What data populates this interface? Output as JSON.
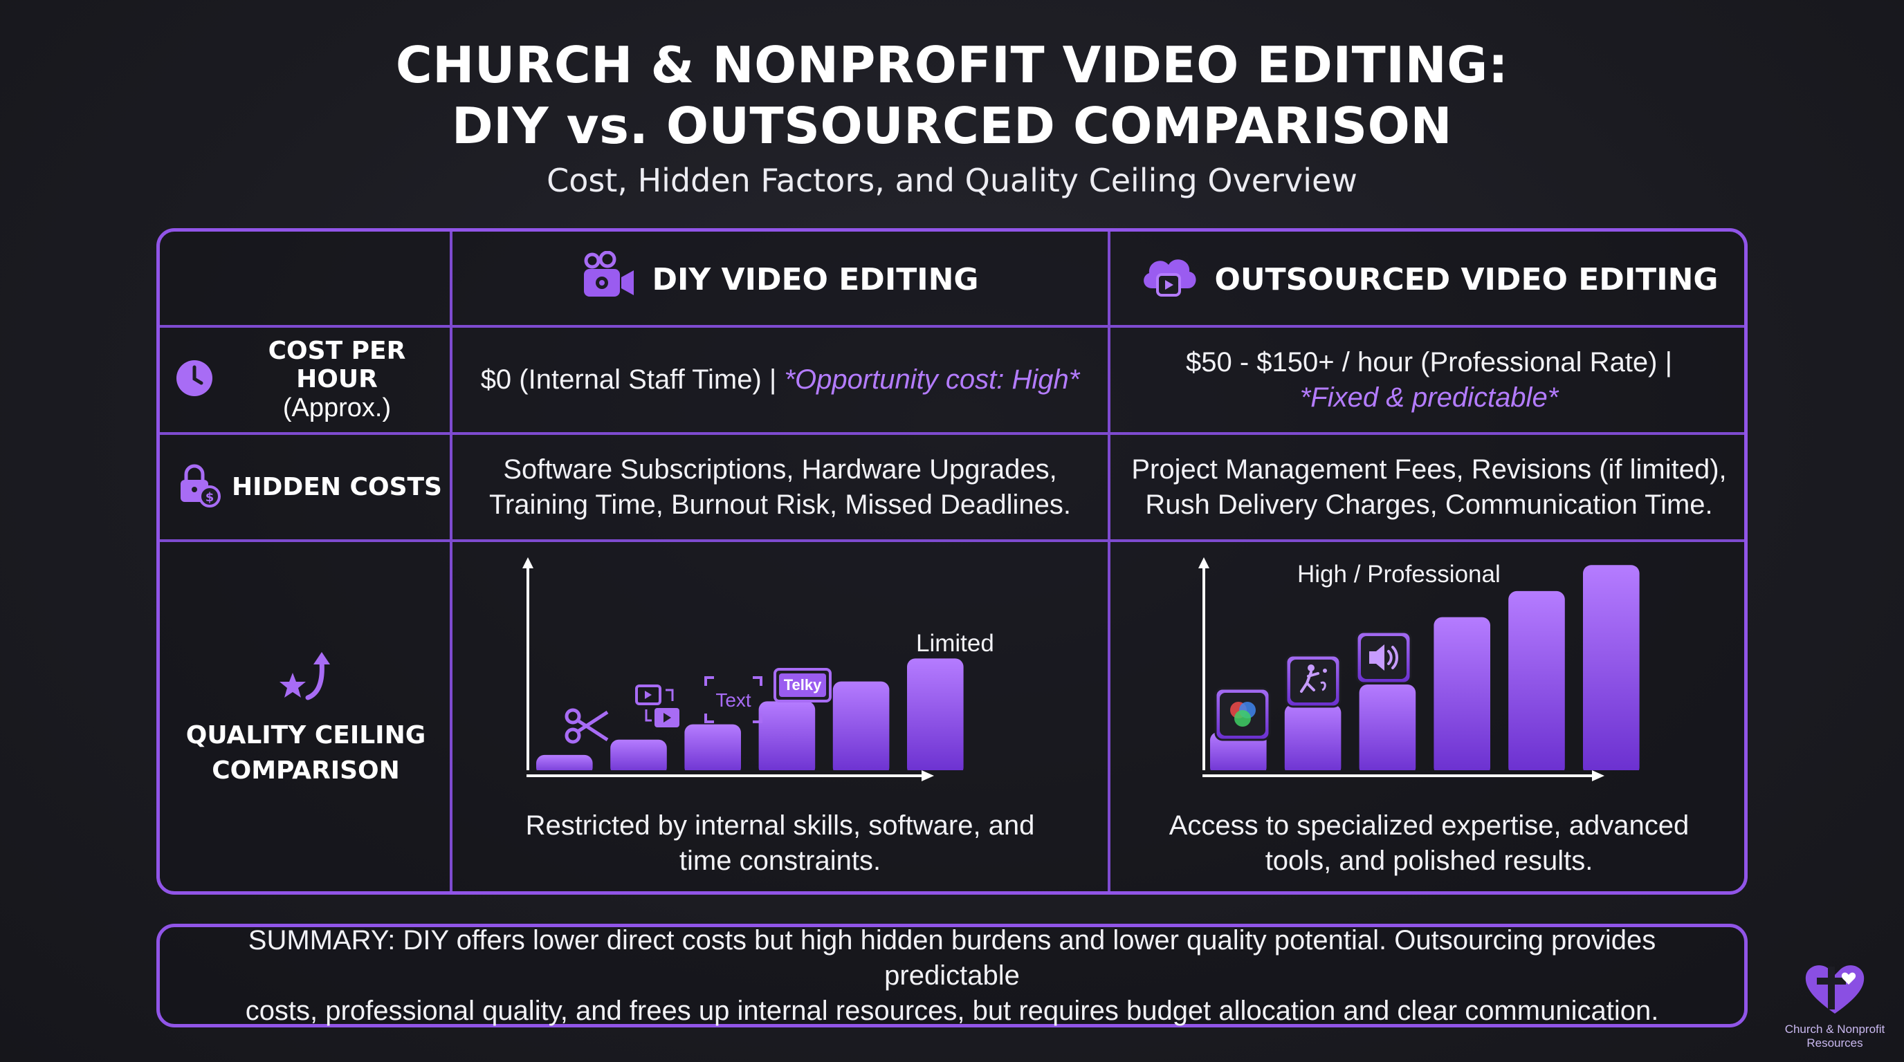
{
  "header": {
    "title_line1": "CHURCH & NONPROFIT VIDEO EDITING:",
    "title_line2": "DIY vs. OUTSOURCED COMPARISON",
    "subtitle": "Cost, Hidden Factors, and Quality Ceiling Overview"
  },
  "columns": {
    "diy": {
      "label": "DIY VIDEO EDITING",
      "icon": "video-camera-gear-icon"
    },
    "outsourced": {
      "label": "OUTSOURCED VIDEO EDITING",
      "icon": "cloud-play-icon"
    }
  },
  "rows": {
    "cost": {
      "label": "COST PER HOUR",
      "sublabel": "(Approx.)",
      "icon": "clock-icon",
      "diy_text": "$0 (Internal Staff Time) |",
      "diy_emphasis": "*Opportunity cost: High*",
      "out_text": "$50 - $150+ / hour (Professional Rate) |",
      "out_emphasis": "*Fixed & predictable*"
    },
    "hidden": {
      "label": "HIDDEN COSTS",
      "icon": "lock-money-icon",
      "diy_line1": "Software Subscriptions, Hardware Upgrades,",
      "diy_line2": "Training Time, Burnout Risk, Missed Deadlines.",
      "out_line1": "Project Management Fees, Revisions (if limited),",
      "out_line2": "Rush Delivery Charges, Communication Time."
    },
    "quality": {
      "label_line1": "QUALITY CEILING",
      "label_line2": "COMPARISON",
      "icon": "star-arrow-up-icon",
      "diy_caption_line1": "Restricted by internal skills, software, and",
      "diy_caption_line2": "time constraints.",
      "out_caption_line1": "Access to specialized expertise, advanced",
      "out_caption_line2": "tools, and polished results."
    }
  },
  "chart_data": [
    {
      "type": "bar",
      "annotation": "Limited",
      "values": [
        1,
        2,
        3,
        4.5,
        5.8,
        7.3
      ],
      "icons": [
        "scissors-icon",
        "clip-swap-icon",
        "text-tool-icon",
        "telky-badge-icon"
      ],
      "icon_label": "Text",
      "badge_label": "Telky",
      "ylim": [
        0,
        14
      ]
    },
    {
      "type": "bar",
      "annotation": "High / Professional",
      "values": [
        2.5,
        4.3,
        5.6,
        10,
        11.7,
        13.4
      ],
      "icons": [
        "color-wheel-icon",
        "motion-graphics-icon",
        "audio-speaker-icon"
      ],
      "ylim": [
        0,
        14
      ]
    }
  ],
  "summary": {
    "line1": "SUMMARY: DIY offers lower direct costs but high hidden burdens and lower quality potential. Outsourcing provides predictable",
    "line2": "costs, professional quality, and frees up internal resources, but requires budget allocation and clear communication."
  },
  "logo": {
    "icon": "heart-cross-logo-icon",
    "line1": "Church & Nonprofit",
    "line2": "Resources"
  },
  "colors": {
    "accent": "#9155e8",
    "bar_top": "#b57cff",
    "bar_bottom": "#6a2fcf",
    "emphasis": "#b47cff"
  }
}
